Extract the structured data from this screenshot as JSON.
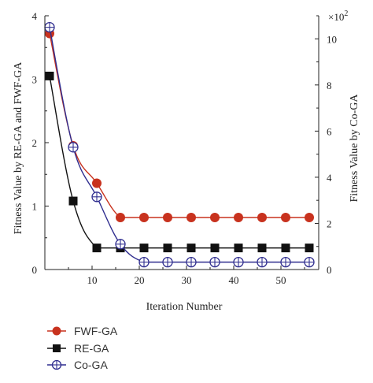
{
  "chart_data": {
    "type": "line",
    "xlabel": "Iteration Number",
    "ylabel_left": "Fitness Value by RE-GA and FWF-GA",
    "ylabel_right": "Fitness Value by Co-GA",
    "right_axis_multiplier": "×10",
    "right_axis_exponent": "2",
    "xlim": [
      0,
      58
    ],
    "ylim_left": [
      0,
      4
    ],
    "ylim_right": [
      0,
      11
    ],
    "x_ticks": [
      10,
      20,
      30,
      40,
      50
    ],
    "y_ticks_left": [
      0,
      1,
      2,
      3,
      4
    ],
    "y_ticks_right": [
      0,
      2,
      4,
      6,
      8,
      10
    ],
    "legend_position": "bottom-left",
    "series": [
      {
        "name": "FWF-GA",
        "axis": "left",
        "color": "#c8321e",
        "marker": "filled-circle",
        "x": [
          1,
          6,
          11,
          16,
          21,
          26,
          31,
          36,
          41,
          46,
          51,
          56
        ],
        "y": [
          3.72,
          1.95,
          1.36,
          0.82,
          0.82,
          0.82,
          0.82,
          0.82,
          0.82,
          0.82,
          0.82,
          0.82
        ]
      },
      {
        "name": "RE-GA",
        "axis": "left",
        "color": "#111111",
        "marker": "filled-square",
        "x": [
          1,
          6,
          11,
          16,
          21,
          26,
          31,
          36,
          41,
          46,
          51,
          56
        ],
        "y": [
          3.05,
          1.08,
          0.34,
          0.34,
          0.34,
          0.34,
          0.34,
          0.34,
          0.34,
          0.34,
          0.34,
          0.34
        ]
      },
      {
        "name": "Co-GA",
        "axis": "right",
        "color": "#2f2d8f",
        "marker": "crossed-circle",
        "x": [
          1,
          6,
          11,
          16,
          21,
          26,
          31,
          36,
          41,
          46,
          51,
          56
        ],
        "y": [
          10.5,
          5.3,
          3.15,
          1.1,
          0.32,
          0.32,
          0.32,
          0.32,
          0.32,
          0.32,
          0.32,
          0.32
        ]
      }
    ]
  }
}
